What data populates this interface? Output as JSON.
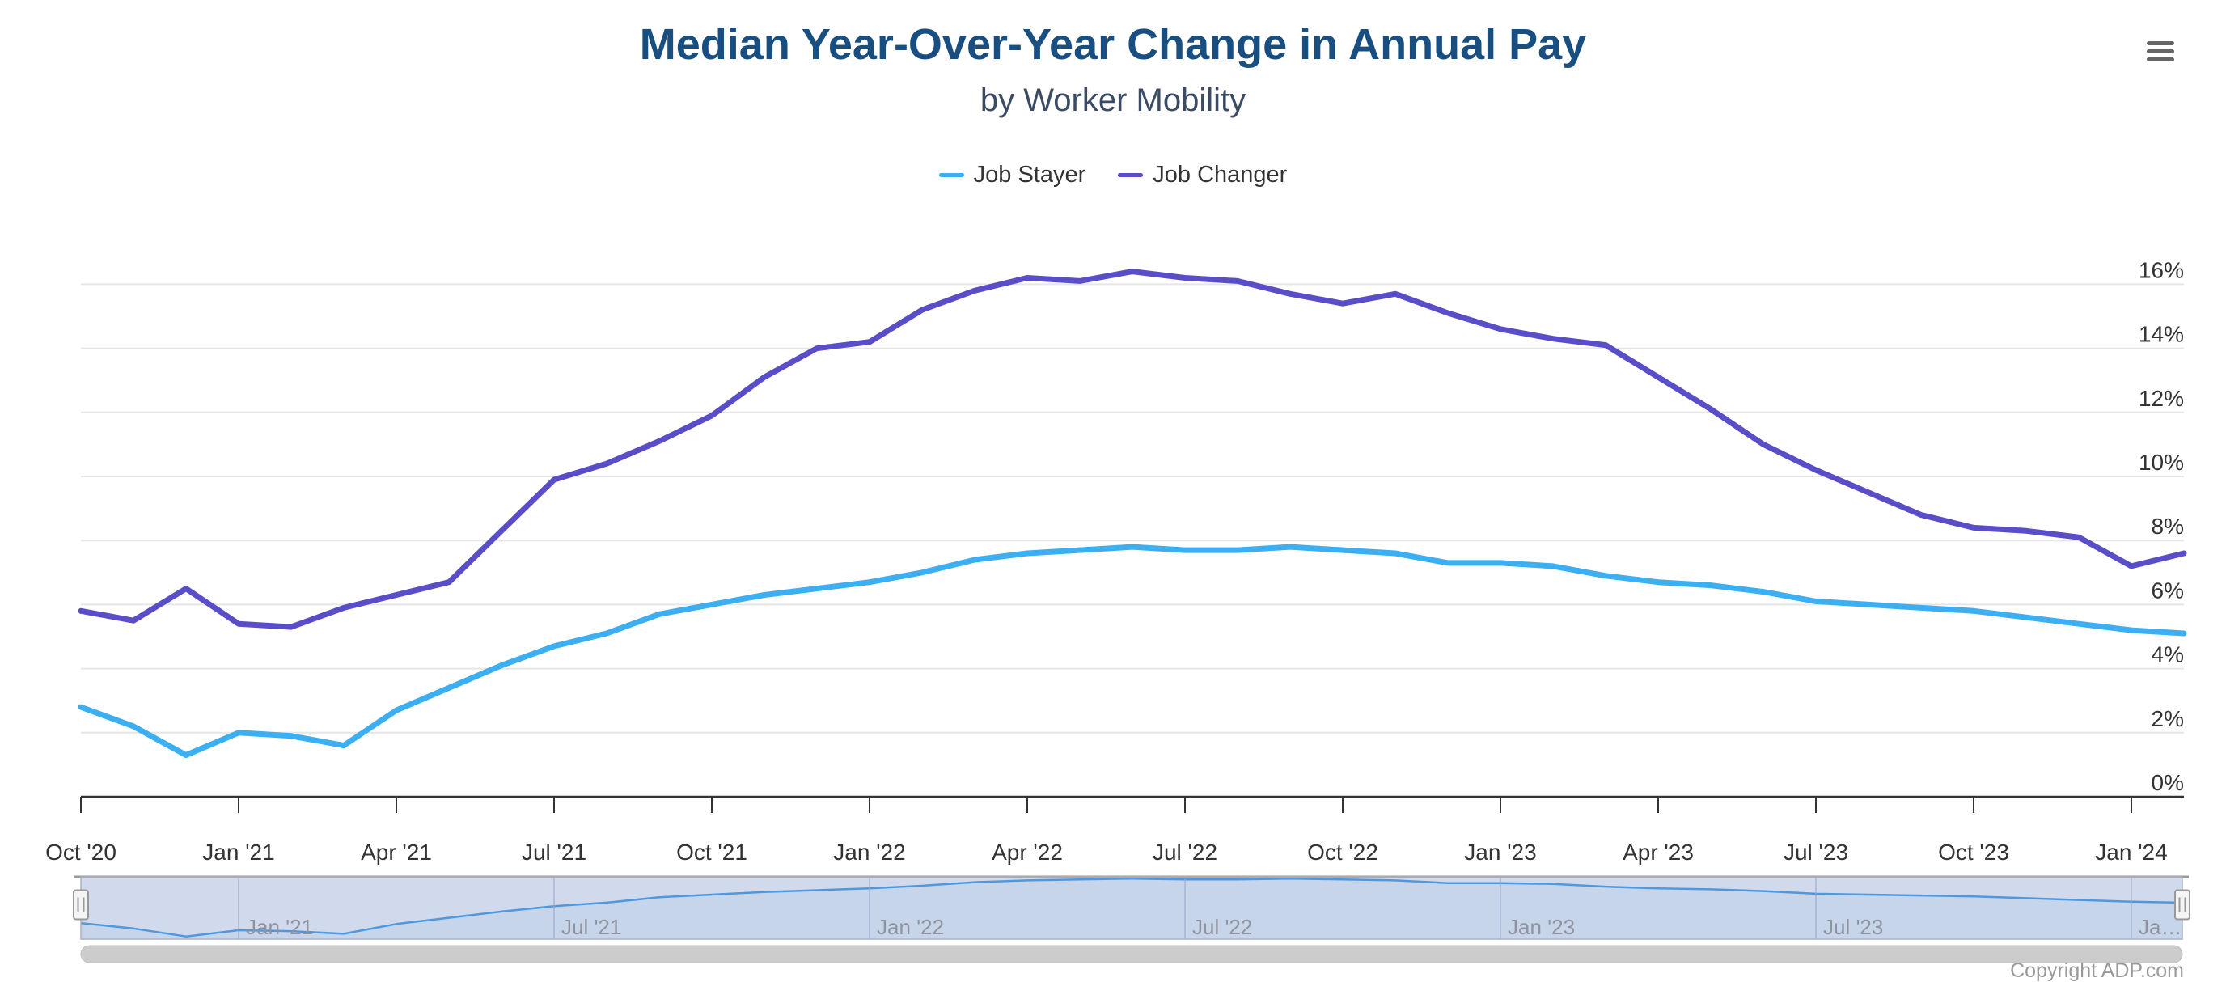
{
  "chart_data": {
    "type": "line",
    "title": "Median Year-Over-Year Change in Annual Pay",
    "subtitle": "by Worker Mobility",
    "unit": "%",
    "grid": true,
    "legend_position": "top-center",
    "ylim": [
      0,
      18
    ],
    "x": [
      "Oct '20",
      "Nov '20",
      "Dec '20",
      "Jan '21",
      "Feb '21",
      "Mar '21",
      "Apr '21",
      "May '21",
      "Jun '21",
      "Jul '21",
      "Aug '21",
      "Sep '21",
      "Oct '21",
      "Nov '21",
      "Dec '21",
      "Jan '22",
      "Feb '22",
      "Mar '22",
      "Apr '22",
      "May '22",
      "Jun '22",
      "Jul '22",
      "Aug '22",
      "Sep '22",
      "Oct '22",
      "Nov '22",
      "Dec '22",
      "Jan '23",
      "Feb '23",
      "Mar '23",
      "Apr '23",
      "May '23",
      "Jun '23",
      "Jul '23",
      "Aug '23",
      "Sep '23",
      "Oct '23",
      "Nov '23",
      "Dec '23",
      "Jan '24",
      "Feb '24"
    ],
    "series": [
      {
        "name": "Job Stayer",
        "color": "#3CAFF2",
        "values": [
          2.8,
          2.2,
          1.3,
          2.0,
          1.9,
          1.6,
          2.7,
          3.4,
          4.1,
          4.7,
          5.1,
          5.7,
          6.0,
          6.3,
          6.5,
          6.7,
          7.0,
          7.4,
          7.6,
          7.7,
          7.8,
          7.7,
          7.7,
          7.8,
          7.7,
          7.6,
          7.3,
          7.3,
          7.2,
          6.9,
          6.7,
          6.6,
          6.4,
          6.1,
          6.0,
          5.9,
          5.8,
          5.6,
          5.4,
          5.2,
          5.1
        ]
      },
      {
        "name": "Job Changer",
        "color": "#5A4DC8",
        "values": [
          5.8,
          5.5,
          6.5,
          5.4,
          5.3,
          5.9,
          6.3,
          6.7,
          8.3,
          9.9,
          10.4,
          11.1,
          11.9,
          13.1,
          14.0,
          14.2,
          15.2,
          15.8,
          16.2,
          16.1,
          16.4,
          16.2,
          16.1,
          15.7,
          15.4,
          15.7,
          15.1,
          14.6,
          14.3,
          14.1,
          13.1,
          12.1,
          11.0,
          10.2,
          9.5,
          8.8,
          8.4,
          8.3,
          8.1,
          7.2,
          7.6
        ]
      }
    ],
    "y_ticks": [
      {
        "v": 0,
        "label": "0%"
      },
      {
        "v": 2,
        "label": "2%"
      },
      {
        "v": 4,
        "label": "4%"
      },
      {
        "v": 6,
        "label": "6%"
      },
      {
        "v": 8,
        "label": "8%"
      },
      {
        "v": 10,
        "label": "10%"
      },
      {
        "v": 12,
        "label": "12%"
      },
      {
        "v": 14,
        "label": "14%"
      },
      {
        "v": 16,
        "label": "16%"
      }
    ],
    "x_ticks": [
      {
        "i": 0,
        "label": "Oct '20"
      },
      {
        "i": 3,
        "label": "Jan '21"
      },
      {
        "i": 6,
        "label": "Apr '21"
      },
      {
        "i": 9,
        "label": "Jul '21"
      },
      {
        "i": 12,
        "label": "Oct '21"
      },
      {
        "i": 15,
        "label": "Jan '22"
      },
      {
        "i": 18,
        "label": "Apr '22"
      },
      {
        "i": 21,
        "label": "Jul '22"
      },
      {
        "i": 24,
        "label": "Oct '22"
      },
      {
        "i": 27,
        "label": "Jan '23"
      },
      {
        "i": 30,
        "label": "Apr '23"
      },
      {
        "i": 33,
        "label": "Jul '23"
      },
      {
        "i": 36,
        "label": "Oct '23"
      },
      {
        "i": 39,
        "label": "Jan '24"
      }
    ],
    "navigator": {
      "mini_series": "Job Stayer",
      "ylim": [
        1.0,
        8.0
      ],
      "labels": [
        {
          "i": 3,
          "label": "Jan '21"
        },
        {
          "i": 9,
          "label": "Jul '21"
        },
        {
          "i": 15,
          "label": "Jan '22"
        },
        {
          "i": 21,
          "label": "Jul '22"
        },
        {
          "i": 27,
          "label": "Jan '23"
        },
        {
          "i": 33,
          "label": "Jul '23"
        },
        {
          "i": 39,
          "label": "Ja…"
        }
      ]
    }
  },
  "credits": {
    "label": "Copyright ADP.com"
  },
  "ui_colors": {
    "title": "#194E80",
    "subtitle": "#3C4B64",
    "legend_text": "#333333",
    "axis_label": "#333333",
    "axis_line": "#333333",
    "gridline": "#E6E6E6",
    "navigator_mask": "#6685C2",
    "navigator_line": "#47A1E8",
    "navigator_gridline": "#9AA5CE",
    "navigator_label": "#8F93A0",
    "navigator_top_border": "#999999",
    "navigator_edge": "#AAB0C4",
    "scrollbar_thumb": "#CCCCCC",
    "scrollbar_edge": "#BFBFBF",
    "handle_fill": "#F4F4F4",
    "handle_stroke": "#999999",
    "menu_icon": "#666666",
    "credits": "#999999"
  }
}
